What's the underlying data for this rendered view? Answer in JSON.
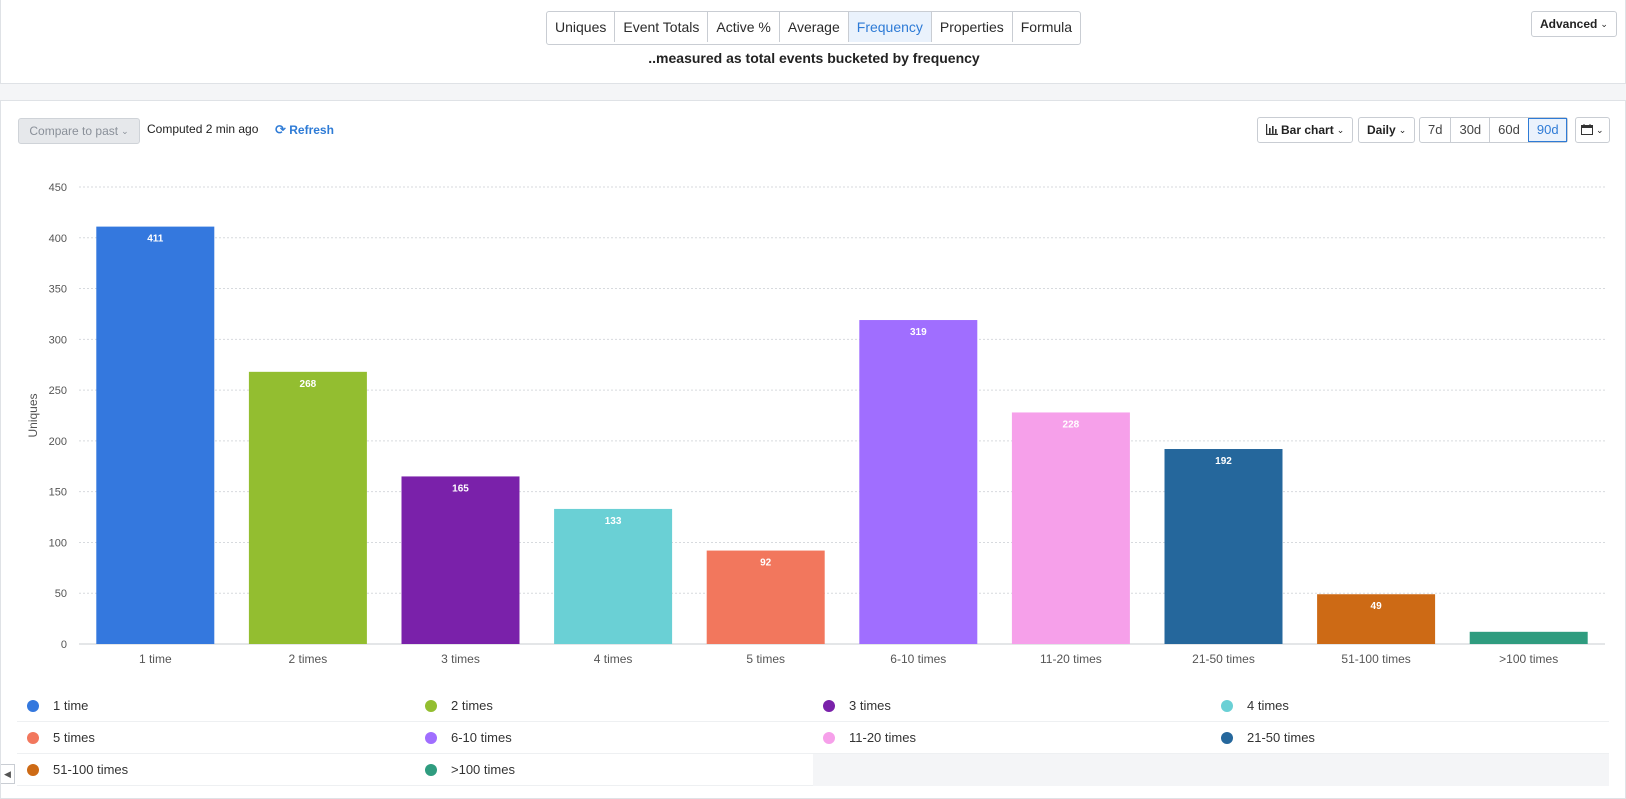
{
  "top_tabs": {
    "items": [
      "Uniques",
      "Event Totals",
      "Active %",
      "Average",
      "Frequency",
      "Properties",
      "Formula"
    ],
    "active": "Frequency"
  },
  "subtitle": "..measured as total events bucketed by frequency",
  "advanced_label": "Advanced",
  "toolbar": {
    "compare_label": "Compare to past",
    "computed_text": "Computed 2 min ago",
    "refresh_label": "Refresh",
    "chart_type_label": "Bar chart",
    "interval_label": "Daily",
    "ranges": [
      "7d",
      "30d",
      "60d",
      "90d"
    ],
    "active_range": "90d"
  },
  "colors": {
    "accent": "#2e7bd6",
    "series": [
      "#3478de",
      "#93be30",
      "#7a21aa",
      "#6ad0d5",
      "#f2775d",
      "#a06eff",
      "#f6a0ea",
      "#25679c",
      "#cd6a15",
      "#2f9c7f"
    ]
  },
  "chart_data": {
    "type": "bar",
    "ylabel": "Uniques",
    "ylim": [
      0,
      450
    ],
    "yticks": [
      0,
      50,
      100,
      150,
      200,
      250,
      300,
      350,
      400,
      450
    ],
    "grid": true,
    "legend_position": "bottom",
    "categories": [
      "1 time",
      "2 times",
      "3 times",
      "4 times",
      "5 times",
      "6-10 times",
      "11-20 times",
      "21-50 times",
      "51-100 times",
      ">100 times"
    ],
    "values": [
      411,
      268,
      165,
      133,
      92,
      319,
      228,
      192,
      49,
      12
    ],
    "data_labels": [
      "411",
      "268",
      "165",
      "133",
      "92",
      "319",
      "228",
      "192",
      "49",
      ""
    ]
  },
  "legend": {
    "items": [
      "1 time",
      "2 times",
      "3 times",
      "4 times",
      "5 times",
      "6-10 times",
      "11-20 times",
      "21-50 times",
      "51-100 times",
      ">100 times"
    ]
  }
}
